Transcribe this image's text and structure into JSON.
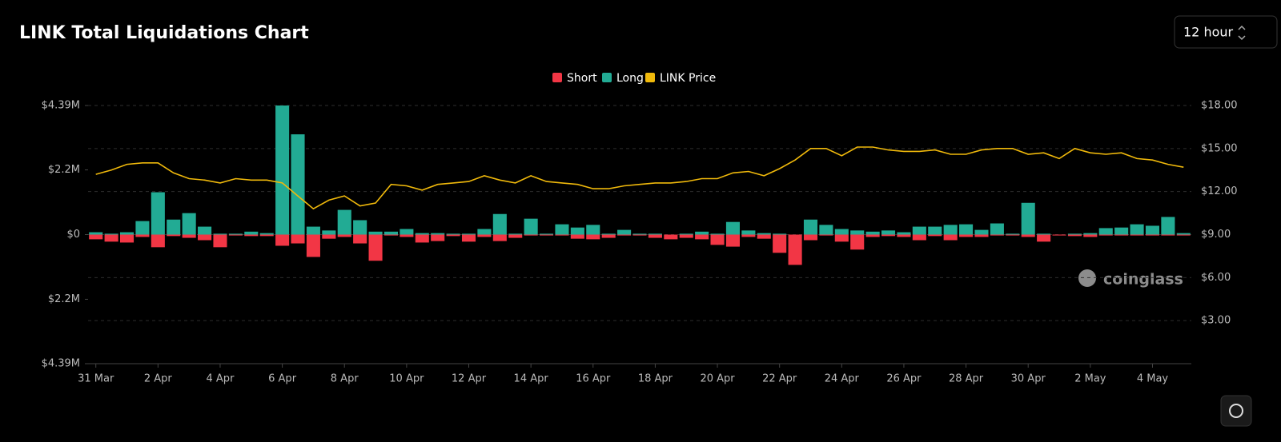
{
  "chart_data": {
    "type": "bar",
    "title": "LINK Total Liquidations Chart",
    "categories": [
      "31 Mar",
      null,
      null,
      null,
      "2 Apr",
      null,
      null,
      null,
      "4 Apr",
      null,
      null,
      null,
      "6 Apr",
      null,
      null,
      null,
      "8 Apr",
      null,
      null,
      null,
      "10 Apr",
      null,
      null,
      null,
      "12 Apr",
      null,
      null,
      null,
      "14 Apr",
      null,
      null,
      null,
      "16 Apr",
      null,
      null,
      null,
      "18 Apr",
      null,
      null,
      null,
      "20 Apr",
      null,
      null,
      null,
      "22 Apr",
      null,
      null,
      null,
      "24 Apr",
      null,
      null,
      null,
      "26 Apr",
      null,
      null,
      null,
      "28 Apr",
      null,
      null,
      null,
      "30 Apr",
      null,
      null,
      null,
      "2 May",
      null,
      null,
      null,
      "4 May",
      null,
      null
    ],
    "series": [
      {
        "name": "Short",
        "color": "#f23645",
        "type": "bar",
        "values": [
          -160000,
          -240000,
          -270000,
          -80000,
          -430000,
          -50000,
          -110000,
          -190000,
          -430000,
          -30000,
          -50000,
          -50000,
          -380000,
          -300000,
          -760000,
          -140000,
          -80000,
          -300000,
          -890000,
          -30000,
          -80000,
          -270000,
          -220000,
          -50000,
          -240000,
          -80000,
          -220000,
          -110000,
          -30000,
          -30000,
          -30000,
          -140000,
          -160000,
          -110000,
          -30000,
          -30000,
          -110000,
          -160000,
          -110000,
          -160000,
          -350000,
          -410000,
          -80000,
          -140000,
          -620000,
          -1030000,
          -190000,
          -30000,
          -240000,
          -510000,
          -80000,
          -50000,
          -80000,
          -190000,
          -50000,
          -190000,
          -80000,
          -80000,
          -30000,
          -30000,
          -80000,
          -240000,
          -30000,
          -50000,
          -80000,
          -30000,
          -30000,
          -30000,
          -30000,
          -30000,
          -30000
        ]
      },
      {
        "name": "Long",
        "color": "#22ab94",
        "type": "bar",
        "values": [
          80000,
          30000,
          80000,
          460000,
          1440000,
          510000,
          730000,
          270000,
          30000,
          30000,
          100000,
          50000,
          4390000,
          3410000,
          270000,
          140000,
          840000,
          490000,
          100000,
          100000,
          190000,
          50000,
          50000,
          30000,
          30000,
          190000,
          700000,
          30000,
          540000,
          30000,
          350000,
          240000,
          330000,
          30000,
          160000,
          30000,
          30000,
          0,
          30000,
          100000,
          30000,
          430000,
          140000,
          50000,
          30000,
          0,
          510000,
          330000,
          190000,
          140000,
          100000,
          140000,
          80000,
          270000,
          270000,
          330000,
          350000,
          160000,
          380000,
          30000,
          1080000,
          30000,
          0,
          30000,
          50000,
          220000,
          240000,
          350000,
          300000,
          600000,
          50000
        ]
      },
      {
        "name": "LINK Price",
        "color": "#f0b90b",
        "type": "line",
        "axis": "y2",
        "values": [
          13.2,
          13.5,
          13.9,
          14.0,
          14.0,
          13.3,
          12.9,
          12.8,
          12.6,
          12.9,
          12.8,
          12.8,
          12.6,
          11.7,
          10.8,
          11.4,
          11.7,
          11.0,
          11.2,
          12.5,
          12.4,
          12.1,
          12.5,
          12.6,
          12.7,
          13.1,
          12.8,
          12.6,
          13.1,
          12.7,
          12.6,
          12.5,
          12.2,
          12.2,
          12.4,
          12.5,
          12.6,
          12.6,
          12.7,
          12.9,
          12.9,
          13.3,
          13.4,
          13.1,
          13.6,
          14.2,
          15.0,
          15.0,
          14.5,
          15.1,
          15.1,
          14.9,
          14.8,
          14.8,
          14.9,
          14.6,
          14.6,
          14.9,
          15.0,
          15.0,
          14.6,
          14.7,
          14.3,
          15.0,
          14.7,
          14.6,
          14.7,
          14.3,
          14.2,
          13.9,
          13.7
        ]
      }
    ],
    "ylim": [
      -4390000,
      4390000
    ],
    "yticks": [
      {
        "value": 4390000,
        "label": "$4.39M"
      },
      {
        "value": 2200000,
        "label": "$2.2M"
      },
      {
        "value": 0,
        "label": "$0"
      },
      {
        "value": -2200000,
        "label": "$2.2M"
      },
      {
        "value": -4390000,
        "label": "$4.39M"
      }
    ],
    "y2lim": [
      0,
      18
    ],
    "y2ticks": [
      {
        "value": 3,
        "label": "$3.00"
      },
      {
        "value": 6,
        "label": "$6.00"
      },
      {
        "value": 9,
        "label": "$9.00"
      },
      {
        "value": 12,
        "label": "$12.00"
      },
      {
        "value": 15,
        "label": "$15.00"
      },
      {
        "value": 18,
        "label": "$18.00"
      }
    ],
    "grid": true,
    "legend": "top"
  },
  "controls": {
    "interval": "12 hour"
  },
  "watermark": "coinglass"
}
